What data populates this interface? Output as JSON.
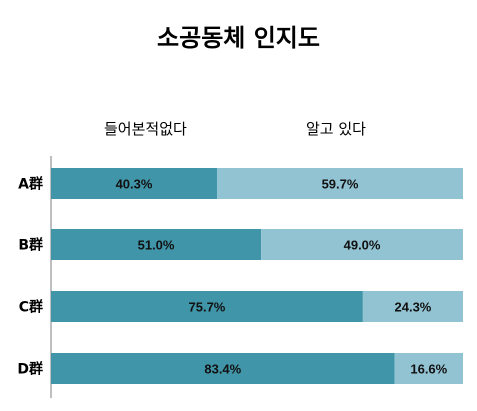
{
  "chart_data": {
    "type": "bar",
    "orientation": "horizontal",
    "stacked": "100%",
    "title": "소공동체 인지도",
    "categories": [
      "A群",
      "B群",
      "C群",
      "D群"
    ],
    "series": [
      {
        "name": "들어본적없다",
        "values": [
          40.3,
          51.0,
          75.7,
          83.4
        ],
        "labels": [
          "40.3%",
          "51.0%",
          "75.7%",
          "83.4%"
        ],
        "color": "#4095a9"
      },
      {
        "name": "알고 있다",
        "values": [
          59.7,
          49.0,
          24.3,
          16.6
        ],
        "labels": [
          "59.7%",
          "49.0%",
          "24.3%",
          "16.6%"
        ],
        "color": "#92c3d3"
      }
    ],
    "xlim": [
      0,
      100
    ],
    "grid": false,
    "legend_position": "top"
  }
}
